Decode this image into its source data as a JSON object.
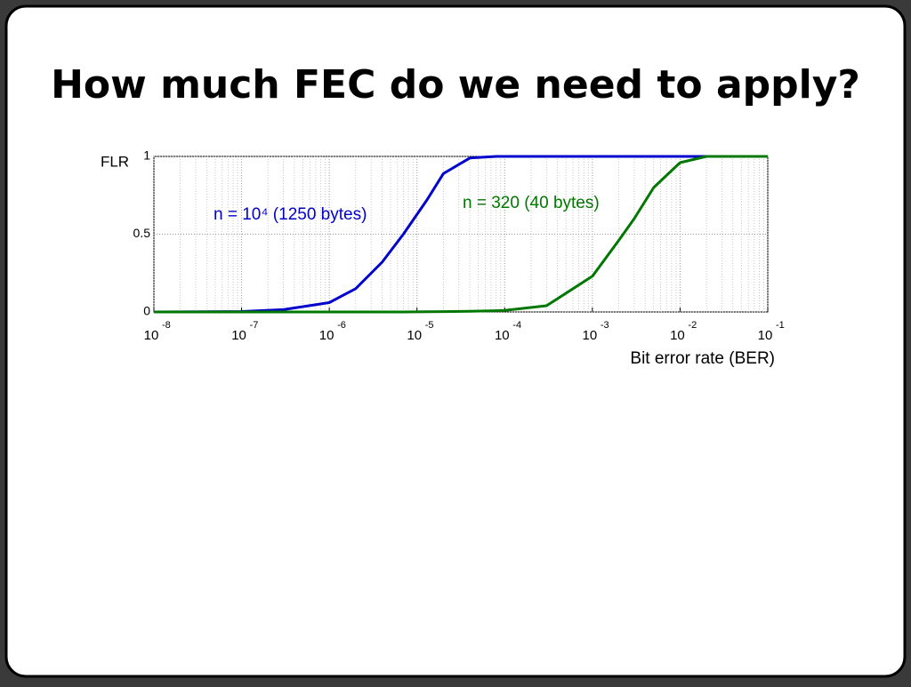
{
  "title": "How much FEC do we need to apply?",
  "chart_data": {
    "type": "line",
    "log_x": true,
    "grid": true,
    "minor_grid": true,
    "ylabel": "FLR",
    "xlabel": "Bit error rate (BER)",
    "x": [
      1e-08,
      1e-07,
      3e-07,
      1e-06,
      2e-06,
      4e-06,
      7e-06,
      1.3e-05,
      2e-05,
      4e-05,
      8e-05,
      0.0001,
      0.0003,
      0.001,
      0.002,
      0.003,
      0.005,
      0.01,
      0.02,
      0.1
    ],
    "series": [
      {
        "name": "n = 10⁴ (1250 bytes)",
        "color": "#0000cc",
        "values": [
          0,
          0.003,
          0.015,
          0.06,
          0.15,
          0.32,
          0.5,
          0.72,
          0.89,
          0.99,
          1,
          1,
          1,
          1,
          1,
          1,
          1,
          1,
          1,
          1
        ]
      },
      {
        "name": "n = 320 (40 bytes)",
        "color": "#007700",
        "values": [
          0,
          0,
          0,
          0,
          0,
          0,
          0,
          0.001,
          0.002,
          0.004,
          0.008,
          0.01,
          0.04,
          0.23,
          0.46,
          0.6,
          0.8,
          0.96,
          1,
          1
        ]
      }
    ],
    "xlim": [
      1e-08,
      0.1
    ],
    "ylim": [
      0,
      1
    ],
    "xticks": [
      {
        "value": 1e-08,
        "label": "10",
        "exponent": "-8"
      },
      {
        "value": 1e-07,
        "label": "10",
        "exponent": "-7"
      },
      {
        "value": 1e-06,
        "label": "10",
        "exponent": "-6"
      },
      {
        "value": 1e-05,
        "label": "10",
        "exponent": "-5"
      },
      {
        "value": 0.0001,
        "label": "10",
        "exponent": "-4"
      },
      {
        "value": 0.001,
        "label": "10",
        "exponent": "-3"
      },
      {
        "value": 0.01,
        "label": "10",
        "exponent": "-2"
      },
      {
        "value": 0.1,
        "label": "10",
        "exponent": "-1"
      }
    ],
    "yticks": [
      0,
      0.5,
      1
    ]
  }
}
